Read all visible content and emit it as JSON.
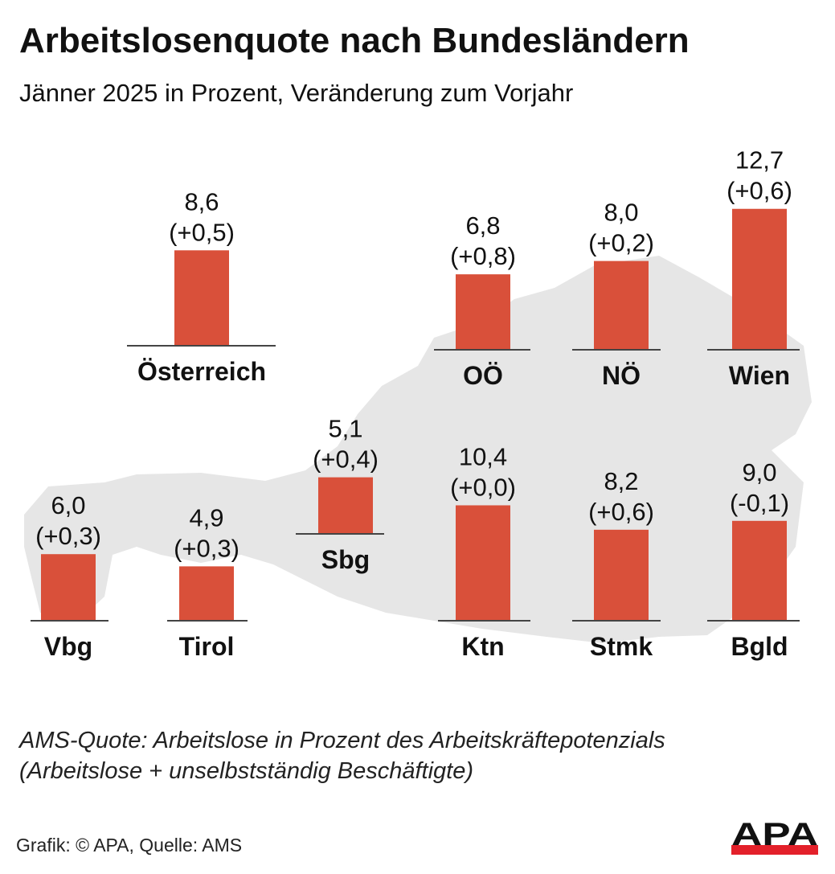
{
  "title": "Arbeitslosenquote nach Bundesländern",
  "subtitle": "Jänner 2025 in Prozent, Veränderung zum Vorjahr",
  "note_line1": "AMS-Quote: Arbeitslose in Prozent des Arbeitskräftepotenzials",
  "note_line2": "(Arbeitslose + unselbstständig Beschäftigte)",
  "credit": "Grafik: © APA, Quelle: AMS",
  "logo_text": "APA",
  "colors": {
    "bar": "#d9503a",
    "map": "#e6e6e6",
    "austria_label": "#333333",
    "logo_red": "#e3202a"
  },
  "chart_data": {
    "type": "bar",
    "background": "map of Austria",
    "categories": [
      "Österreich",
      "OÖ",
      "NÖ",
      "Wien",
      "Vbg",
      "Tirol",
      "Sbg",
      "Ktn",
      "Stmk",
      "Bgld"
    ],
    "values": [
      8.6,
      6.8,
      8.0,
      12.7,
      6.0,
      4.9,
      5.1,
      10.4,
      8.2,
      9.0
    ],
    "value_labels": [
      "8,6",
      "6,8",
      "8,0",
      "12,7",
      "6,0",
      "4,9",
      "5,1",
      "10,4",
      "8,2",
      "9,0"
    ],
    "change_labels": [
      "(+0,5)",
      "(+0,8)",
      "(+0,2)",
      "(+0,6)",
      "(+0,3)",
      "(+0,3)",
      "(+0,4)",
      "(+0,0)",
      "(+0,6)",
      "(-0,1)"
    ],
    "changes": [
      0.5,
      0.8,
      0.2,
      0.6,
      0.3,
      0.3,
      0.4,
      0.0,
      0.6,
      -0.1
    ],
    "unit": "%"
  }
}
